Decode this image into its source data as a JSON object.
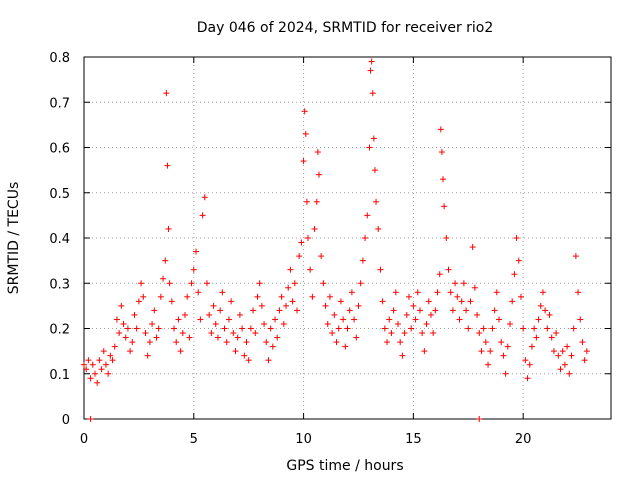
{
  "chart_data": {
    "type": "scatter",
    "title": "Day 046 of 2024, SRMTID for receiver rio2",
    "xlabel": "GPS time / hours",
    "ylabel": "SRMTID / TECUs",
    "xlim": [
      0,
      24.0
    ],
    "ylim": [
      0,
      0.8
    ],
    "xticks": [
      0,
      5,
      10,
      15,
      20
    ],
    "yticks": [
      0,
      0.1,
      0.2,
      0.3,
      0.4,
      0.5,
      0.6,
      0.7,
      0.8
    ],
    "xtick_labels": [
      "0",
      "5",
      "10",
      "15",
      "20"
    ],
    "ytick_labels": [
      "0",
      "0.1",
      "0.2",
      "0.3",
      "0.4",
      "0.5",
      "0.6",
      "0.7",
      "0.8"
    ],
    "grid": true,
    "marker": "+",
    "color": "#ff0000",
    "series": [
      {
        "name": "SRMTID",
        "points": [
          [
            0.0,
            0.12
          ],
          [
            0.1,
            0.11
          ],
          [
            0.2,
            0.13
          ],
          [
            0.3,
            0.09
          ],
          [
            0.4,
            0.12
          ],
          [
            0.5,
            0.1
          ],
          [
            0.6,
            0.08
          ],
          [
            0.7,
            0.13
          ],
          [
            0.8,
            0.11
          ],
          [
            0.9,
            0.15
          ],
          [
            1.0,
            0.12
          ],
          [
            1.1,
            0.1
          ],
          [
            1.2,
            0.14
          ],
          [
            1.3,
            0.13
          ],
          [
            1.4,
            0.16
          ],
          [
            1.5,
            0.22
          ],
          [
            1.6,
            0.19
          ],
          [
            1.7,
            0.25
          ],
          [
            1.8,
            0.21
          ],
          [
            1.9,
            0.18
          ],
          [
            2.0,
            0.2
          ],
          [
            2.1,
            0.15
          ],
          [
            2.2,
            0.17
          ],
          [
            2.3,
            0.23
          ],
          [
            2.4,
            0.2
          ],
          [
            2.5,
            0.26
          ],
          [
            2.6,
            0.3
          ],
          [
            2.7,
            0.27
          ],
          [
            2.8,
            0.19
          ],
          [
            2.9,
            0.14
          ],
          [
            3.0,
            0.17
          ],
          [
            3.1,
            0.21
          ],
          [
            3.2,
            0.24
          ],
          [
            3.3,
            0.18
          ],
          [
            3.4,
            0.2
          ],
          [
            3.5,
            0.27
          ],
          [
            3.6,
            0.31
          ],
          [
            3.7,
            0.35
          ],
          [
            3.75,
            0.72
          ],
          [
            3.8,
            0.56
          ],
          [
            3.85,
            0.42
          ],
          [
            3.9,
            0.3
          ],
          [
            4.0,
            0.26
          ],
          [
            4.1,
            0.2
          ],
          [
            4.2,
            0.17
          ],
          [
            4.3,
            0.22
          ],
          [
            4.4,
            0.15
          ],
          [
            4.5,
            0.19
          ],
          [
            4.6,
            0.23
          ],
          [
            4.7,
            0.27
          ],
          [
            4.8,
            0.18
          ],
          [
            4.9,
            0.3
          ],
          [
            5.0,
            0.33
          ],
          [
            5.1,
            0.37
          ],
          [
            5.2,
            0.28
          ],
          [
            5.3,
            0.22
          ],
          [
            5.4,
            0.45
          ],
          [
            5.5,
            0.49
          ],
          [
            5.6,
            0.3
          ],
          [
            5.7,
            0.23
          ],
          [
            5.8,
            0.19
          ],
          [
            5.9,
            0.25
          ],
          [
            6.0,
            0.21
          ],
          [
            6.1,
            0.18
          ],
          [
            6.2,
            0.24
          ],
          [
            6.3,
            0.28
          ],
          [
            6.4,
            0.2
          ],
          [
            6.5,
            0.17
          ],
          [
            6.6,
            0.22
          ],
          [
            6.7,
            0.26
          ],
          [
            6.8,
            0.19
          ],
          [
            6.9,
            0.15
          ],
          [
            7.0,
            0.18
          ],
          [
            7.1,
            0.23
          ],
          [
            7.2,
            0.2
          ],
          [
            7.3,
            0.14
          ],
          [
            7.4,
            0.17
          ],
          [
            7.5,
            0.13
          ],
          [
            7.6,
            0.2
          ],
          [
            7.7,
            0.24
          ],
          [
            7.8,
            0.19
          ],
          [
            7.9,
            0.27
          ],
          [
            8.0,
            0.3
          ],
          [
            8.1,
            0.25
          ],
          [
            8.2,
            0.21
          ],
          [
            8.3,
            0.17
          ],
          [
            8.4,
            0.13
          ],
          [
            8.5,
            0.2
          ],
          [
            8.6,
            0.16
          ],
          [
            8.7,
            0.22
          ],
          [
            8.8,
            0.18
          ],
          [
            8.9,
            0.24
          ],
          [
            9.0,
            0.27
          ],
          [
            9.1,
            0.21
          ],
          [
            9.2,
            0.25
          ],
          [
            9.3,
            0.29
          ],
          [
            9.4,
            0.33
          ],
          [
            9.5,
            0.26
          ],
          [
            9.6,
            0.3
          ],
          [
            9.7,
            0.24
          ],
          [
            9.8,
            0.36
          ],
          [
            9.9,
            0.39
          ],
          [
            10.0,
            0.57
          ],
          [
            10.05,
            0.68
          ],
          [
            10.1,
            0.63
          ],
          [
            10.15,
            0.48
          ],
          [
            10.2,
            0.4
          ],
          [
            10.3,
            0.33
          ],
          [
            10.4,
            0.27
          ],
          [
            10.5,
            0.42
          ],
          [
            10.6,
            0.48
          ],
          [
            10.65,
            0.59
          ],
          [
            10.7,
            0.54
          ],
          [
            10.8,
            0.36
          ],
          [
            10.9,
            0.3
          ],
          [
            11.0,
            0.25
          ],
          [
            11.1,
            0.21
          ],
          [
            11.2,
            0.27
          ],
          [
            11.3,
            0.19
          ],
          [
            11.4,
            0.23
          ],
          [
            11.5,
            0.17
          ],
          [
            11.6,
            0.2
          ],
          [
            11.7,
            0.26
          ],
          [
            11.8,
            0.22
          ],
          [
            11.9,
            0.16
          ],
          [
            12.0,
            0.2
          ],
          [
            12.1,
            0.24
          ],
          [
            12.2,
            0.28
          ],
          [
            12.3,
            0.22
          ],
          [
            12.4,
            0.18
          ],
          [
            12.5,
            0.25
          ],
          [
            12.6,
            0.3
          ],
          [
            12.7,
            0.35
          ],
          [
            12.8,
            0.4
          ],
          [
            12.9,
            0.45
          ],
          [
            13.0,
            0.6
          ],
          [
            13.05,
            0.77
          ],
          [
            13.1,
            0.79
          ],
          [
            13.15,
            0.72
          ],
          [
            13.2,
            0.62
          ],
          [
            13.25,
            0.55
          ],
          [
            13.3,
            0.48
          ],
          [
            13.4,
            0.42
          ],
          [
            13.5,
            0.33
          ],
          [
            13.6,
            0.26
          ],
          [
            13.7,
            0.2
          ],
          [
            13.8,
            0.17
          ],
          [
            13.9,
            0.22
          ],
          [
            14.0,
            0.19
          ],
          [
            14.1,
            0.24
          ],
          [
            14.2,
            0.28
          ],
          [
            14.3,
            0.21
          ],
          [
            14.4,
            0.17
          ],
          [
            14.5,
            0.14
          ],
          [
            14.6,
            0.19
          ],
          [
            14.7,
            0.23
          ],
          [
            14.8,
            0.27
          ],
          [
            14.9,
            0.2
          ],
          [
            15.0,
            0.25
          ],
          [
            15.1,
            0.22
          ],
          [
            15.2,
            0.28
          ],
          [
            15.3,
            0.24
          ],
          [
            15.4,
            0.19
          ],
          [
            15.5,
            0.15
          ],
          [
            15.6,
            0.21
          ],
          [
            15.7,
            0.26
          ],
          [
            15.8,
            0.23
          ],
          [
            15.9,
            0.19
          ],
          [
            16.0,
            0.24
          ],
          [
            16.1,
            0.28
          ],
          [
            16.2,
            0.32
          ],
          [
            16.25,
            0.64
          ],
          [
            16.3,
            0.59
          ],
          [
            16.35,
            0.53
          ],
          [
            16.4,
            0.47
          ],
          [
            16.5,
            0.4
          ],
          [
            16.6,
            0.33
          ],
          [
            16.7,
            0.28
          ],
          [
            16.8,
            0.24
          ],
          [
            16.9,
            0.3
          ],
          [
            17.0,
            0.27
          ],
          [
            17.1,
            0.22
          ],
          [
            17.2,
            0.26
          ],
          [
            17.3,
            0.3
          ],
          [
            17.4,
            0.24
          ],
          [
            17.5,
            0.2
          ],
          [
            17.6,
            0.26
          ],
          [
            17.7,
            0.38
          ],
          [
            17.8,
            0.29
          ],
          [
            17.9,
            0.23
          ],
          [
            18.0,
            0.19
          ],
          [
            18.1,
            0.15
          ],
          [
            18.2,
            0.2
          ],
          [
            18.3,
            0.17
          ],
          [
            18.4,
            0.12
          ],
          [
            18.5,
            0.15
          ],
          [
            18.6,
            0.2
          ],
          [
            18.7,
            0.24
          ],
          [
            18.8,
            0.28
          ],
          [
            18.9,
            0.22
          ],
          [
            19.0,
            0.17
          ],
          [
            19.1,
            0.14
          ],
          [
            19.2,
            0.1
          ],
          [
            19.3,
            0.16
          ],
          [
            19.4,
            0.21
          ],
          [
            19.5,
            0.26
          ],
          [
            19.6,
            0.32
          ],
          [
            19.7,
            0.4
          ],
          [
            19.8,
            0.35
          ],
          [
            19.9,
            0.27
          ],
          [
            20.0,
            0.2
          ],
          [
            20.1,
            0.13
          ],
          [
            20.2,
            0.09
          ],
          [
            20.3,
            0.12
          ],
          [
            20.4,
            0.16
          ],
          [
            20.5,
            0.2
          ],
          [
            20.6,
            0.18
          ],
          [
            20.7,
            0.22
          ],
          [
            20.8,
            0.25
          ],
          [
            20.9,
            0.28
          ],
          [
            21.0,
            0.24
          ],
          [
            21.1,
            0.2
          ],
          [
            21.2,
            0.23
          ],
          [
            21.3,
            0.18
          ],
          [
            21.4,
            0.15
          ],
          [
            21.5,
            0.19
          ],
          [
            21.6,
            0.14
          ],
          [
            21.7,
            0.11
          ],
          [
            21.8,
            0.15
          ],
          [
            21.9,
            0.12
          ],
          [
            22.0,
            0.16
          ],
          [
            22.1,
            0.1
          ],
          [
            22.2,
            0.14
          ],
          [
            22.3,
            0.2
          ],
          [
            22.4,
            0.36
          ],
          [
            22.5,
            0.28
          ],
          [
            22.6,
            0.22
          ],
          [
            22.7,
            0.17
          ],
          [
            22.8,
            0.13
          ],
          [
            22.9,
            0.15
          ],
          [
            0.3,
            0.0
          ],
          [
            18.0,
            0.0
          ]
        ]
      }
    ]
  }
}
